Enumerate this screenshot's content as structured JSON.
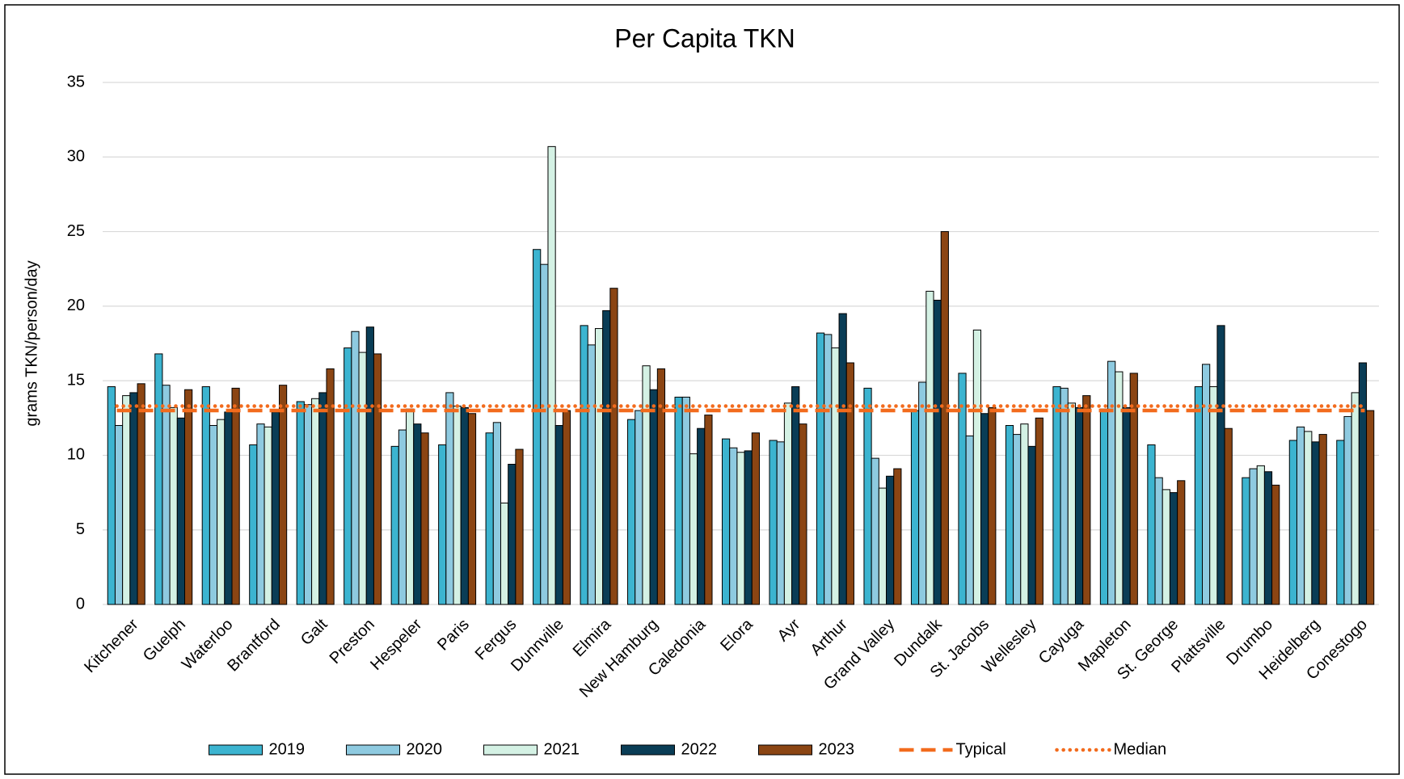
{
  "chart_data": {
    "type": "bar",
    "title": "Per Capita TKN",
    "y_label": "grams TKN/person/day",
    "categories": [
      "Kitchener",
      "Guelph",
      "Waterloo",
      "Brantford",
      "Galt",
      "Preston",
      "Hespeler",
      "Paris",
      "Fergus",
      "Dunnville",
      "Elmira",
      "New Hamburg",
      "Caledonia",
      "Elora",
      "Ayr",
      "Arthur",
      "Grand Valley",
      "Dundalk",
      "St. Jacobs",
      "Wellesley",
      "Cayuga",
      "Mapleton",
      "St. George",
      "Plattsville",
      "Drumbo",
      "Heidelberg",
      "Conestogo"
    ],
    "series": [
      {
        "name": "2019",
        "color": "#3cb4d0",
        "values": [
          14.6,
          16.8,
          14.6,
          10.7,
          13.6,
          17.2,
          10.6,
          10.7,
          11.5,
          23.8,
          18.7,
          12.4,
          13.9,
          11.1,
          11.0,
          18.2,
          14.5,
          13.0,
          15.5,
          12.0,
          14.6,
          13.1,
          10.7,
          14.6,
          8.5,
          11.0,
          11.0
        ]
      },
      {
        "name": "2020",
        "color": "#8ecae0",
        "values": [
          12.0,
          14.7,
          12.0,
          12.1,
          13.4,
          18.3,
          11.7,
          14.2,
          12.2,
          22.8,
          17.4,
          13.0,
          13.9,
          10.5,
          10.9,
          18.1,
          9.8,
          14.9,
          11.3,
          11.4,
          14.5,
          16.3,
          8.5,
          16.1,
          9.1,
          11.9,
          12.6
        ]
      },
      {
        "name": "2021",
        "color": "#d4f1e4",
        "values": [
          14.0,
          13.2,
          12.4,
          11.9,
          13.8,
          16.9,
          13.1,
          13.3,
          6.8,
          30.7,
          18.5,
          16.0,
          10.1,
          10.2,
          13.5,
          17.2,
          7.8,
          21.0,
          18.4,
          12.1,
          13.5,
          15.6,
          7.7,
          14.6,
          9.3,
          11.6,
          14.2
        ]
      },
      {
        "name": "2022",
        "color": "#0a3d56",
        "values": [
          14.2,
          12.5,
          12.9,
          12.9,
          14.2,
          18.6,
          12.1,
          13.2,
          9.4,
          12.0,
          19.7,
          14.4,
          11.8,
          10.3,
          14.6,
          19.5,
          8.6,
          20.4,
          12.8,
          10.6,
          13.2,
          13.2,
          7.5,
          18.7,
          8.9,
          10.9,
          16.2
        ]
      },
      {
        "name": "2023",
        "color": "#8b4513",
        "values": [
          14.8,
          14.4,
          14.5,
          14.7,
          15.8,
          16.8,
          11.5,
          12.8,
          10.4,
          13.0,
          21.2,
          15.8,
          12.7,
          11.5,
          12.1,
          16.2,
          9.1,
          25.0,
          13.2,
          12.5,
          14.0,
          15.5,
          8.3,
          11.8,
          8.0,
          11.4,
          13.0
        ]
      }
    ],
    "reference_lines": [
      {
        "name": "Typical",
        "value": 13.0,
        "color": "#f26b1d",
        "style": "dashed"
      },
      {
        "name": "Median",
        "value": 13.3,
        "color": "#f26b1d",
        "style": "dotted"
      }
    ],
    "ylim": [
      0,
      35
    ],
    "yticks": [
      0,
      5,
      10,
      15,
      20,
      25,
      30,
      35
    ],
    "grid": true,
    "legend": "bottom"
  }
}
